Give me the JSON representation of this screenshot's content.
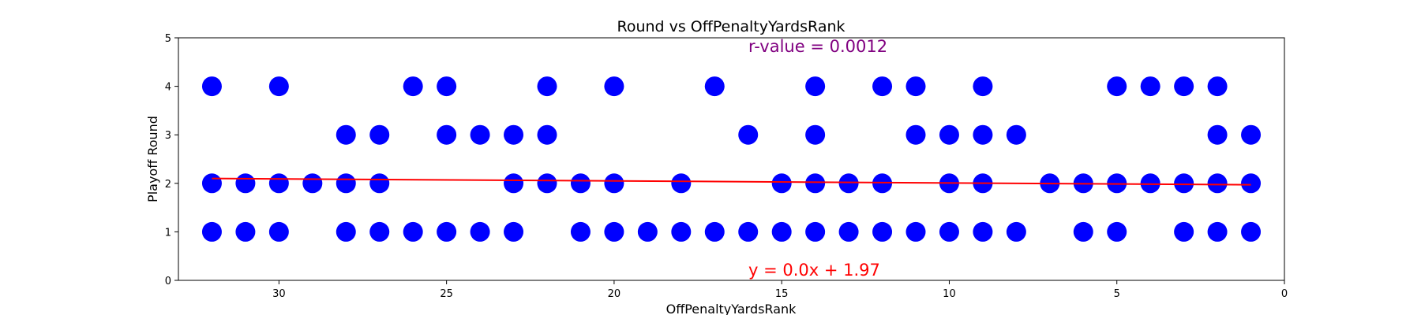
{
  "chart_data": {
    "type": "scatter",
    "title": "Round vs OffPenaltyYardsRank",
    "xlabel": "OffPenaltyYardsRank",
    "ylabel": "Playoff Round",
    "xlim": [
      33,
      0
    ],
    "ylim": [
      0,
      5
    ],
    "x_inverted": true,
    "xticks": [
      30,
      25,
      20,
      15,
      10,
      5,
      0
    ],
    "yticks": [
      0,
      1,
      2,
      3,
      4,
      5
    ],
    "grid": false,
    "legend": "none",
    "point_color": "#0000ff",
    "points": [
      {
        "x": 32,
        "y": 4
      },
      {
        "x": 30,
        "y": 4
      },
      {
        "x": 26,
        "y": 4
      },
      {
        "x": 25,
        "y": 4
      },
      {
        "x": 22,
        "y": 4
      },
      {
        "x": 20,
        "y": 4
      },
      {
        "x": 17,
        "y": 4
      },
      {
        "x": 14,
        "y": 4
      },
      {
        "x": 12,
        "y": 4
      },
      {
        "x": 11,
        "y": 4
      },
      {
        "x": 9,
        "y": 4
      },
      {
        "x": 5,
        "y": 4
      },
      {
        "x": 4,
        "y": 4
      },
      {
        "x": 3,
        "y": 4
      },
      {
        "x": 2,
        "y": 4
      },
      {
        "x": 28,
        "y": 3
      },
      {
        "x": 27,
        "y": 3
      },
      {
        "x": 25,
        "y": 3
      },
      {
        "x": 24,
        "y": 3
      },
      {
        "x": 23,
        "y": 3
      },
      {
        "x": 22,
        "y": 3
      },
      {
        "x": 16,
        "y": 3
      },
      {
        "x": 14,
        "y": 3
      },
      {
        "x": 11,
        "y": 3
      },
      {
        "x": 10,
        "y": 3
      },
      {
        "x": 9,
        "y": 3
      },
      {
        "x": 8,
        "y": 3
      },
      {
        "x": 2,
        "y": 3
      },
      {
        "x": 1,
        "y": 3
      },
      {
        "x": 32,
        "y": 2
      },
      {
        "x": 31,
        "y": 2
      },
      {
        "x": 30,
        "y": 2
      },
      {
        "x": 29,
        "y": 2
      },
      {
        "x": 28,
        "y": 2
      },
      {
        "x": 27,
        "y": 2
      },
      {
        "x": 23,
        "y": 2
      },
      {
        "x": 22,
        "y": 2
      },
      {
        "x": 21,
        "y": 2
      },
      {
        "x": 20,
        "y": 2
      },
      {
        "x": 18,
        "y": 2
      },
      {
        "x": 15,
        "y": 2
      },
      {
        "x": 14,
        "y": 2
      },
      {
        "x": 13,
        "y": 2
      },
      {
        "x": 12,
        "y": 2
      },
      {
        "x": 10,
        "y": 2
      },
      {
        "x": 9,
        "y": 2
      },
      {
        "x": 7,
        "y": 2
      },
      {
        "x": 6,
        "y": 2
      },
      {
        "x": 5,
        "y": 2
      },
      {
        "x": 4,
        "y": 2
      },
      {
        "x": 3,
        "y": 2
      },
      {
        "x": 2,
        "y": 2
      },
      {
        "x": 1,
        "y": 2
      },
      {
        "x": 32,
        "y": 1
      },
      {
        "x": 31,
        "y": 1
      },
      {
        "x": 30,
        "y": 1
      },
      {
        "x": 28,
        "y": 1
      },
      {
        "x": 27,
        "y": 1
      },
      {
        "x": 26,
        "y": 1
      },
      {
        "x": 25,
        "y": 1
      },
      {
        "x": 24,
        "y": 1
      },
      {
        "x": 23,
        "y": 1
      },
      {
        "x": 21,
        "y": 1
      },
      {
        "x": 20,
        "y": 1
      },
      {
        "x": 19,
        "y": 1
      },
      {
        "x": 18,
        "y": 1
      },
      {
        "x": 17,
        "y": 1
      },
      {
        "x": 16,
        "y": 1
      },
      {
        "x": 15,
        "y": 1
      },
      {
        "x": 14,
        "y": 1
      },
      {
        "x": 13,
        "y": 1
      },
      {
        "x": 12,
        "y": 1
      },
      {
        "x": 11,
        "y": 1
      },
      {
        "x": 10,
        "y": 1
      },
      {
        "x": 9,
        "y": 1
      },
      {
        "x": 8,
        "y": 1
      },
      {
        "x": 6,
        "y": 1
      },
      {
        "x": 5,
        "y": 1
      },
      {
        "x": 3,
        "y": 1
      },
      {
        "x": 2,
        "y": 1
      },
      {
        "x": 1,
        "y": 1
      }
    ],
    "regression": {
      "color": "#ff0000",
      "x_range": [
        32,
        1
      ],
      "y_start": 2.1,
      "y_end": 1.97
    },
    "annotations": {
      "r_value": {
        "text": "r-value = 0.0012",
        "color": "#800080"
      },
      "equation": {
        "text": "y = 0.0x + 1.97",
        "color": "#ff0000"
      }
    }
  }
}
